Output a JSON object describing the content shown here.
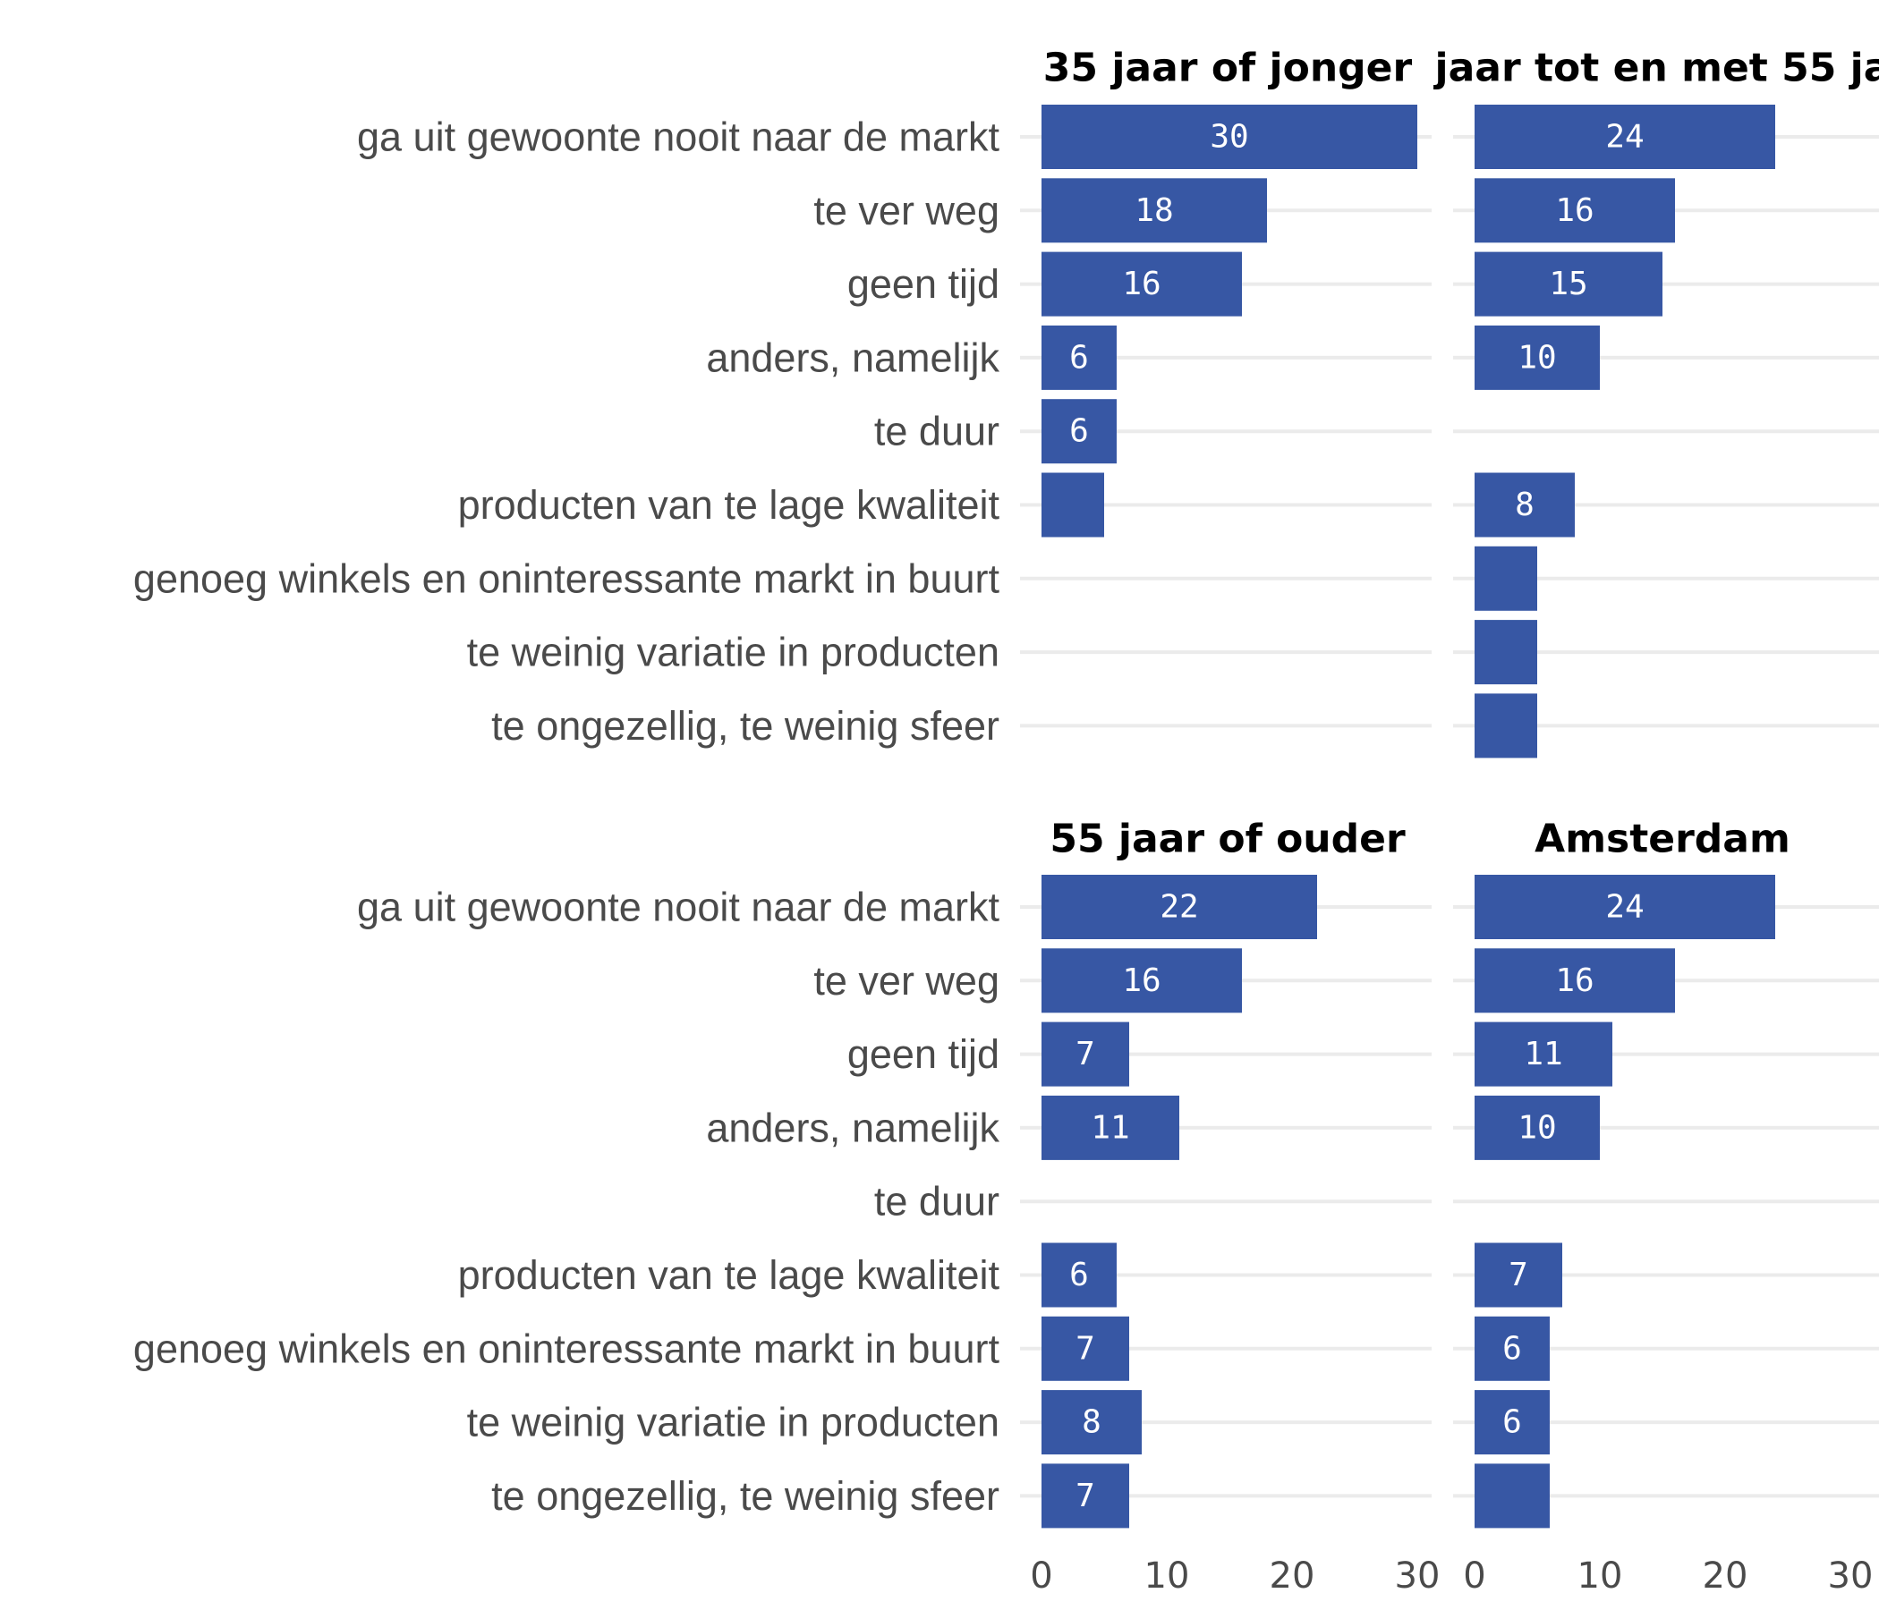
{
  "chart_data": {
    "type": "bar",
    "orientation": "horizontal",
    "facets": [
      {
        "title": "35 jaar of jonger",
        "values": [
          30,
          18,
          16,
          6,
          6,
          5,
          null,
          null,
          null
        ],
        "labels": [
          "30",
          "18",
          "16",
          "6",
          "6",
          "",
          "",
          "",
          ""
        ]
      },
      {
        "title": "jaar tot en met 55 ja",
        "values": [
          24,
          16,
          15,
          10,
          null,
          8,
          5,
          5,
          5
        ],
        "labels": [
          "24",
          "16",
          "15",
          "10",
          "",
          "8",
          "",
          "",
          ""
        ]
      },
      {
        "title": "55 jaar of ouder",
        "values": [
          22,
          16,
          7,
          11,
          null,
          6,
          7,
          8,
          7
        ],
        "labels": [
          "22",
          "16",
          "7",
          "11",
          "",
          "6",
          "7",
          "8",
          "7"
        ]
      },
      {
        "title": "Amsterdam",
        "values": [
          24,
          16,
          11,
          10,
          null,
          7,
          6,
          6,
          6
        ],
        "labels": [
          "24",
          "16",
          "11",
          "10",
          "",
          "7",
          "6",
          "6",
          ""
        ]
      }
    ],
    "categories": [
      "ga uit gewoonte nooit naar de markt",
      "te ver weg",
      "geen tijd",
      "anders, namelijk",
      "te duur",
      "producten van te lage kwaliteit",
      "genoeg winkels en oninteressante markt in buurt",
      "te weinig variatie in producten",
      "te ongezellig, te weinig sfeer"
    ],
    "x_ticks": [
      "0",
      "10",
      "20",
      "30"
    ],
    "xlim": [
      0,
      30
    ],
    "grid": true,
    "bar_color": "#3757a4"
  }
}
